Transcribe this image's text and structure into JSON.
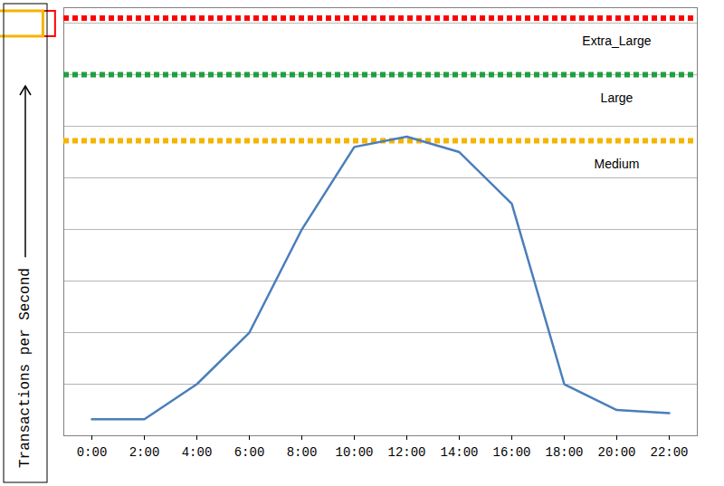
{
  "chart_data": {
    "type": "line",
    "y_label": "Transactions per Second",
    "categories": [
      "0:00",
      "2:00",
      "4:00",
      "6:00",
      "8:00",
      "10:00",
      "12:00",
      "14:00",
      "16:00",
      "18:00",
      "20:00",
      "22:00"
    ],
    "values": [
      0.32,
      0.32,
      1.0,
      2.0,
      4.0,
      5.6,
      5.8,
      5.5,
      4.5,
      1.0,
      0.5,
      0.44
    ],
    "color": "#4a7ebb",
    "ylim": [
      0,
      8.3
    ],
    "yticks": [
      0,
      1,
      2,
      3,
      4,
      5,
      6,
      7,
      8
    ],
    "grid": true,
    "tick_labels": "x",
    "thresholds": [
      {
        "name": "Extra_Large",
        "value": 8.1,
        "color": "#ff0000",
        "line_style": "dotted"
      },
      {
        "name": "Large",
        "value": 7.0,
        "color": "#1fa040",
        "line_style": "dotted"
      },
      {
        "name": "Medium",
        "value": 5.72,
        "color": "#f5b400",
        "line_style": "dotted"
      }
    ]
  }
}
